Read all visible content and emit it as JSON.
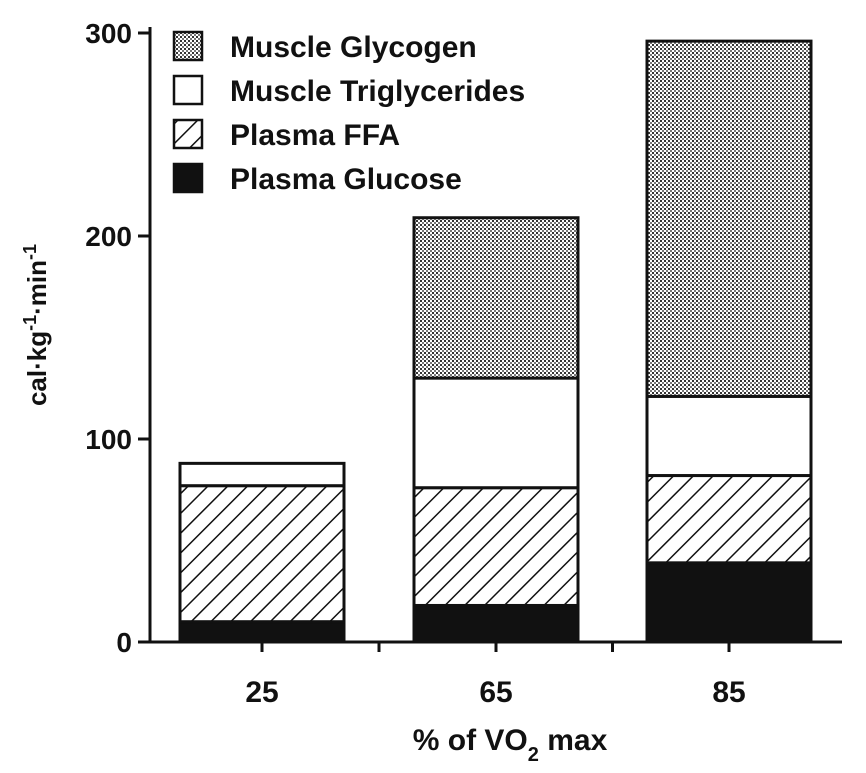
{
  "chart_data": {
    "type": "bar",
    "stacked": true,
    "categories": [
      "25",
      "65",
      "85"
    ],
    "xlabel": "% of VO",
    "xlabel_subscript": "2",
    "xlabel_suffix": " max",
    "ylabel": "cal·kg-1·min-1",
    "ylim": [
      0,
      300
    ],
    "yticks": [
      "0",
      "100",
      "200",
      "300"
    ],
    "series": [
      {
        "name": "Plasma Glucose",
        "values": [
          10,
          18,
          39
        ],
        "fill": "solid",
        "color": "#111111"
      },
      {
        "name": "Plasma FFA",
        "values": [
          67,
          58,
          43
        ],
        "fill": "hatch",
        "color": "#111111"
      },
      {
        "name": "Muscle Triglycerides",
        "values": [
          11,
          54,
          39
        ],
        "fill": "none",
        "color": "#ffffff"
      },
      {
        "name": "Muscle Glycogen",
        "values": [
          0,
          79,
          175
        ],
        "fill": "stipple",
        "color": "#555555"
      }
    ],
    "legend_order": [
      "Muscle Glycogen",
      "Muscle Triglycerides",
      "Plasma FFA",
      "Plasma Glucose"
    ],
    "legend_position": "top-left",
    "grid": false
  }
}
